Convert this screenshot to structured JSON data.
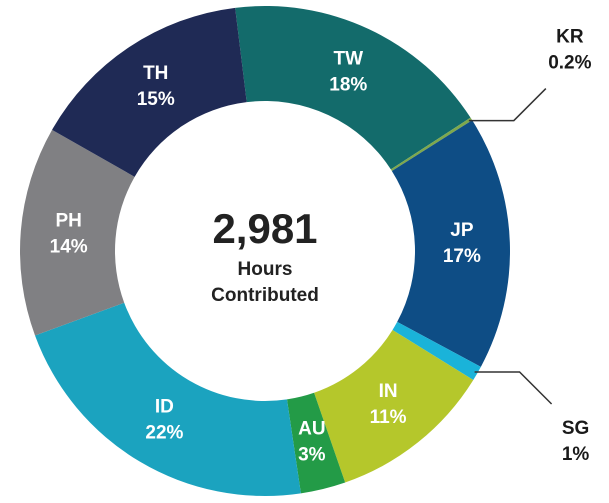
{
  "chart_data": {
    "type": "donut",
    "categories": [
      "TW",
      "KR",
      "JP",
      "SG",
      "IN",
      "AU",
      "ID",
      "PH",
      "TH"
    ],
    "values": [
      18,
      0.2,
      17,
      1,
      11,
      3,
      22,
      14,
      15
    ],
    "value_labels": [
      "18%",
      "0.2%",
      "17%",
      "1%",
      "11%",
      "3%",
      "22%",
      "14%",
      "15%"
    ],
    "colors": [
      "#136b6b",
      "#7ea84c",
      "#0e4d85",
      "#1ab3d9",
      "#b5c72b",
      "#239b47",
      "#1ba3bf",
      "#808083",
      "#1f2a55"
    ],
    "total": {
      "value": 2981,
      "label": "2,981"
    },
    "total_caption": [
      "Hours",
      "Contributed"
    ]
  }
}
